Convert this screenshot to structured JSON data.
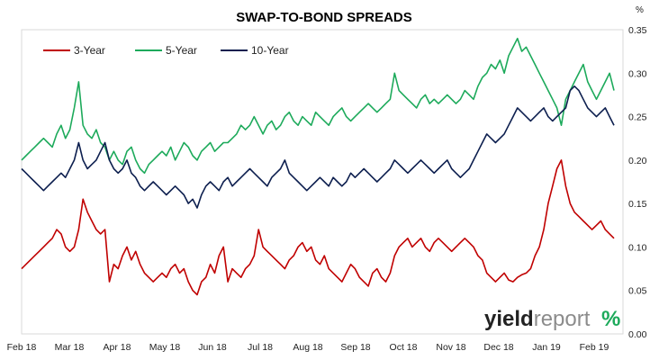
{
  "chart_data": {
    "type": "line",
    "title": "SWAP-TO-BOND SPREADS",
    "yunit": "%",
    "ylim": [
      0,
      0.35
    ],
    "y_ticks": [
      "0.00",
      "0.05",
      "0.10",
      "0.15",
      "0.20",
      "0.25",
      "0.30",
      "0.35"
    ],
    "x_ticks": [
      "Feb 18",
      "Mar 18",
      "Apr 18",
      "May 18",
      "Jun 18",
      "Jul 18",
      "Aug 18",
      "Sep 18",
      "Oct 18",
      "Nov 18",
      "Dec 18",
      "Jan 19",
      "Feb 19"
    ],
    "x_period": "2018-02-01 to 2019-02-28, daily",
    "legend_position": "top-left",
    "gridlines": false,
    "series": [
      {
        "name": "3-Year",
        "color": "#c00000",
        "values": [
          0.075,
          0.08,
          0.085,
          0.09,
          0.095,
          0.1,
          0.105,
          0.11,
          0.12,
          0.115,
          0.1,
          0.095,
          0.1,
          0.12,
          0.155,
          0.14,
          0.13,
          0.12,
          0.115,
          0.12,
          0.06,
          0.08,
          0.075,
          0.09,
          0.1,
          0.085,
          0.095,
          0.08,
          0.07,
          0.065,
          0.06,
          0.065,
          0.07,
          0.065,
          0.075,
          0.08,
          0.07,
          0.075,
          0.06,
          0.05,
          0.045,
          0.06,
          0.065,
          0.08,
          0.07,
          0.09,
          0.1,
          0.06,
          0.075,
          0.07,
          0.065,
          0.075,
          0.08,
          0.09,
          0.12,
          0.1,
          0.095,
          0.09,
          0.085,
          0.08,
          0.075,
          0.085,
          0.09,
          0.1,
          0.105,
          0.095,
          0.1,
          0.085,
          0.08,
          0.09,
          0.075,
          0.07,
          0.065,
          0.06,
          0.07,
          0.08,
          0.075,
          0.065,
          0.06,
          0.055,
          0.07,
          0.075,
          0.065,
          0.06,
          0.07,
          0.09,
          0.1,
          0.105,
          0.11,
          0.1,
          0.105,
          0.11,
          0.1,
          0.095,
          0.105,
          0.11,
          0.105,
          0.1,
          0.095,
          0.1,
          0.105,
          0.11,
          0.105,
          0.1,
          0.09,
          0.085,
          0.07,
          0.065,
          0.06,
          0.065,
          0.07,
          0.062,
          0.06,
          0.065,
          0.068,
          0.07,
          0.075,
          0.09,
          0.1,
          0.12,
          0.15,
          0.17,
          0.19,
          0.2,
          0.17,
          0.15,
          0.14,
          0.135,
          0.13,
          0.125,
          0.12,
          0.125,
          0.13,
          0.12,
          0.115,
          0.11
        ]
      },
      {
        "name": "5-Year",
        "color": "#1daa5b",
        "values": [
          0.2,
          0.205,
          0.21,
          0.215,
          0.22,
          0.225,
          0.22,
          0.215,
          0.23,
          0.24,
          0.225,
          0.235,
          0.26,
          0.29,
          0.24,
          0.23,
          0.225,
          0.235,
          0.22,
          0.215,
          0.2,
          0.21,
          0.2,
          0.195,
          0.21,
          0.215,
          0.2,
          0.19,
          0.185,
          0.195,
          0.2,
          0.205,
          0.21,
          0.205,
          0.215,
          0.2,
          0.21,
          0.22,
          0.215,
          0.205,
          0.2,
          0.21,
          0.215,
          0.22,
          0.21,
          0.215,
          0.22,
          0.22,
          0.225,
          0.23,
          0.24,
          0.235,
          0.24,
          0.25,
          0.24,
          0.23,
          0.24,
          0.245,
          0.235,
          0.24,
          0.25,
          0.255,
          0.245,
          0.24,
          0.25,
          0.245,
          0.24,
          0.255,
          0.25,
          0.245,
          0.24,
          0.25,
          0.255,
          0.26,
          0.25,
          0.245,
          0.25,
          0.255,
          0.26,
          0.265,
          0.26,
          0.255,
          0.26,
          0.265,
          0.27,
          0.3,
          0.28,
          0.275,
          0.27,
          0.265,
          0.26,
          0.27,
          0.275,
          0.265,
          0.27,
          0.265,
          0.27,
          0.275,
          0.27,
          0.265,
          0.27,
          0.28,
          0.275,
          0.27,
          0.285,
          0.295,
          0.3,
          0.31,
          0.305,
          0.315,
          0.3,
          0.32,
          0.33,
          0.34,
          0.325,
          0.33,
          0.32,
          0.31,
          0.3,
          0.29,
          0.28,
          0.27,
          0.26,
          0.24,
          0.27,
          0.28,
          0.29,
          0.3,
          0.31,
          0.29,
          0.28,
          0.27,
          0.28,
          0.29,
          0.3,
          0.28
        ]
      },
      {
        "name": "10-Year",
        "color": "#0d1f4f",
        "values": [
          0.19,
          0.185,
          0.18,
          0.175,
          0.17,
          0.165,
          0.17,
          0.175,
          0.18,
          0.185,
          0.18,
          0.19,
          0.2,
          0.22,
          0.2,
          0.19,
          0.195,
          0.2,
          0.21,
          0.22,
          0.2,
          0.19,
          0.185,
          0.19,
          0.2,
          0.185,
          0.18,
          0.17,
          0.165,
          0.17,
          0.175,
          0.17,
          0.165,
          0.16,
          0.165,
          0.17,
          0.165,
          0.16,
          0.15,
          0.155,
          0.145,
          0.16,
          0.17,
          0.175,
          0.17,
          0.165,
          0.175,
          0.18,
          0.17,
          0.175,
          0.18,
          0.185,
          0.19,
          0.185,
          0.18,
          0.175,
          0.17,
          0.18,
          0.185,
          0.19,
          0.2,
          0.185,
          0.18,
          0.175,
          0.17,
          0.165,
          0.17,
          0.175,
          0.18,
          0.175,
          0.17,
          0.18,
          0.175,
          0.17,
          0.175,
          0.185,
          0.18,
          0.185,
          0.19,
          0.185,
          0.18,
          0.175,
          0.18,
          0.185,
          0.19,
          0.2,
          0.195,
          0.19,
          0.185,
          0.19,
          0.195,
          0.2,
          0.195,
          0.19,
          0.185,
          0.19,
          0.195,
          0.2,
          0.19,
          0.185,
          0.18,
          0.185,
          0.19,
          0.2,
          0.21,
          0.22,
          0.23,
          0.225,
          0.22,
          0.225,
          0.23,
          0.24,
          0.25,
          0.26,
          0.255,
          0.25,
          0.245,
          0.25,
          0.255,
          0.26,
          0.25,
          0.245,
          0.25,
          0.255,
          0.26,
          0.28,
          0.285,
          0.28,
          0.27,
          0.26,
          0.255,
          0.25,
          0.255,
          0.26,
          0.25,
          0.24
        ]
      }
    ]
  },
  "brand": {
    "part1": "yield",
    "part2": "report",
    "symbol": "%",
    "color_dark": "#222222",
    "color_green": "#1daa5b",
    "color_red": "#c00000"
  }
}
